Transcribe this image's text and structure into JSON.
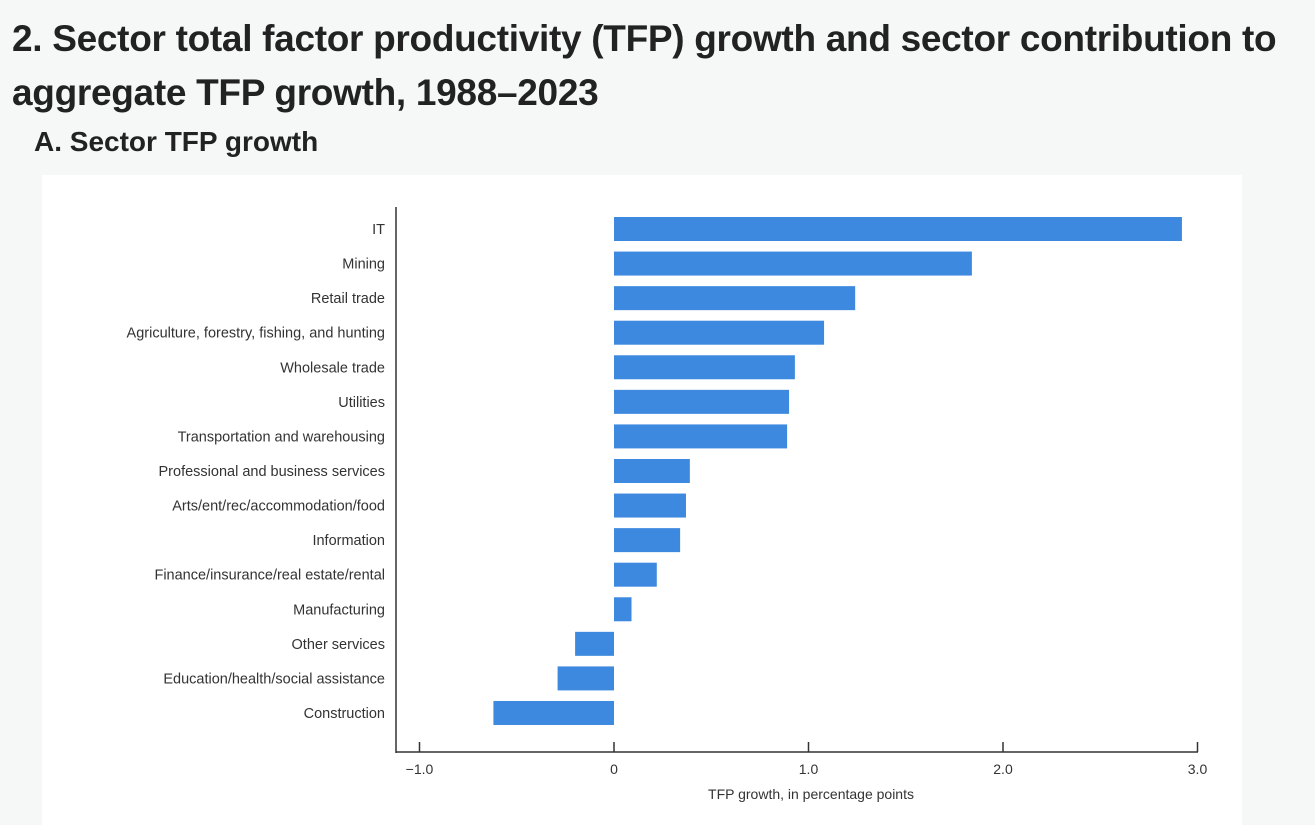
{
  "title": "2. Sector total factor productivity (TFP) growth and sector contribution to aggregate TFP growth, 1988–2023",
  "chart_data": {
    "type": "bar",
    "orientation": "horizontal",
    "title": "A. Sector TFP growth",
    "xlabel": "TFP growth, in percentage points",
    "ylabel": "",
    "xlim": [
      -1.1,
      3.0
    ],
    "xticks": [
      -1.0,
      0,
      1.0,
      2.0,
      3.0
    ],
    "xtick_labels": [
      "−1.0",
      "0",
      "1.0",
      "2.0",
      "3.0"
    ],
    "grid": false,
    "bar_color": "#3d89e0",
    "categories": [
      "IT",
      "Mining",
      "Retail trade",
      "Agriculture, forestry, fishing, and hunting",
      "Wholesale trade",
      "Utilities",
      "Transportation and warehousing",
      "Professional and business services",
      "Arts/ent/rec/accommodation/food",
      "Information",
      "Finance/insurance/real estate/rental",
      "Manufacturing",
      "Other services",
      "Education/health/social assistance",
      "Construction"
    ],
    "values": [
      2.92,
      1.84,
      1.24,
      1.08,
      0.93,
      0.9,
      0.89,
      0.39,
      0.37,
      0.34,
      0.22,
      0.09,
      -0.2,
      -0.29,
      -0.62
    ]
  }
}
